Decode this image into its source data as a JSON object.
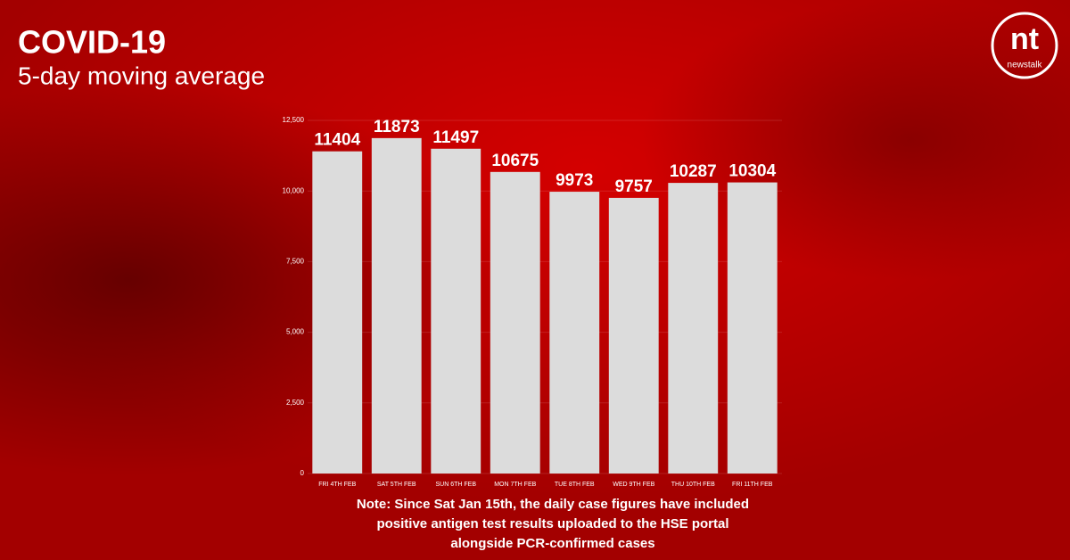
{
  "chart_data": {
    "type": "bar",
    "title": "COVID-19",
    "subtitle": "5-day moving average",
    "categories": [
      "FRI 4TH FEB",
      "SAT 5TH FEB",
      "SUN 6TH FEB",
      "MON 7TH FEB",
      "TUE 8TH FEB",
      "WED 9TH FEB",
      "THU 10TH FEB",
      "FRI 11TH FEB"
    ],
    "values": [
      11404,
      11873,
      11497,
      10675,
      9973,
      9757,
      10287,
      10304
    ],
    "color": "#dcdcdc",
    "ylim": [
      0,
      12500
    ],
    "yticks": [
      0,
      {
        "value": 2500,
        "label": "2,500"
      },
      {
        "value": 5000,
        "label": "5,000"
      },
      {
        "value": 7500,
        "label": "7,500"
      },
      {
        "value": 10000,
        "label": "10,000"
      },
      {
        "value": 12500,
        "label": "12,500"
      }
    ],
    "grid": true,
    "note_lines": [
      "Note: Since Sat Jan 15th, the daily case figures have included",
      "positive antigen test results uploaded to the HSE portal",
      "alongside PCR-confirmed cases"
    ]
  },
  "logo": {
    "mark": "nt",
    "name": "newstalk"
  }
}
